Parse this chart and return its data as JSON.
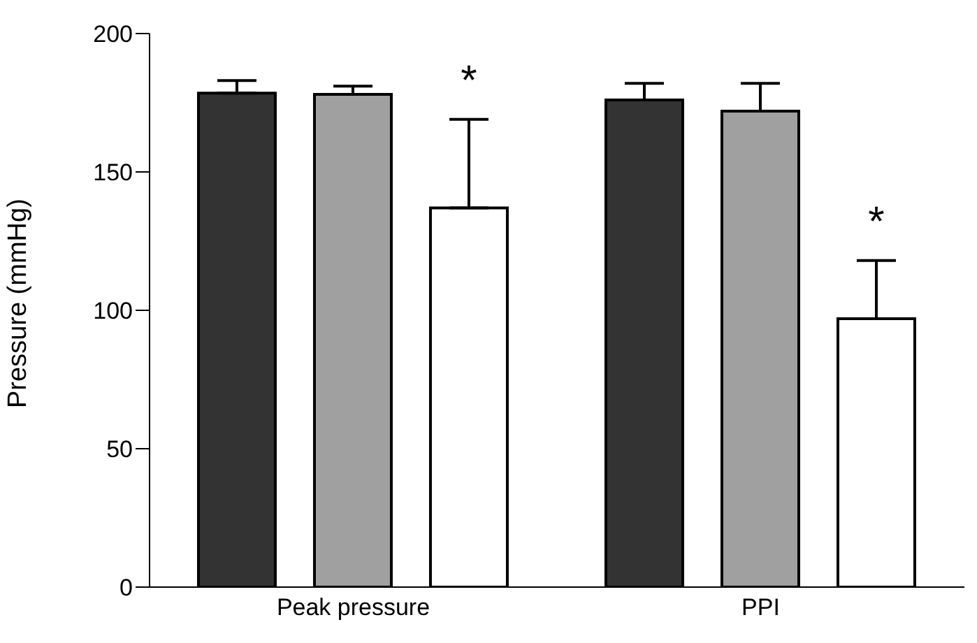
{
  "chart_data": {
    "type": "bar",
    "ylabel": "Pressure (mmHg)",
    "categories": [
      "Peak pressure",
      "PPI"
    ],
    "series": [
      {
        "color": "#333333",
        "values": [
          178.5,
          176
        ],
        "errors": [
          [
            178.5,
            183
          ],
          [
            176,
            182
          ]
        ]
      },
      {
        "color": "#a0a0a0",
        "values": [
          178,
          172
        ],
        "errors": [
          [
            178,
            181
          ],
          [
            172,
            182
          ]
        ]
      },
      {
        "color": "#ffffff",
        "values": [
          137,
          97
        ],
        "errors": [
          [
            137,
            169
          ],
          [
            97,
            118
          ]
        ]
      }
    ],
    "annotations": [
      "*",
      "*"
    ],
    "ylim": [
      0,
      200
    ],
    "yticks": [
      0,
      50,
      100,
      150,
      200
    ],
    "grid": false,
    "legend": false
  }
}
